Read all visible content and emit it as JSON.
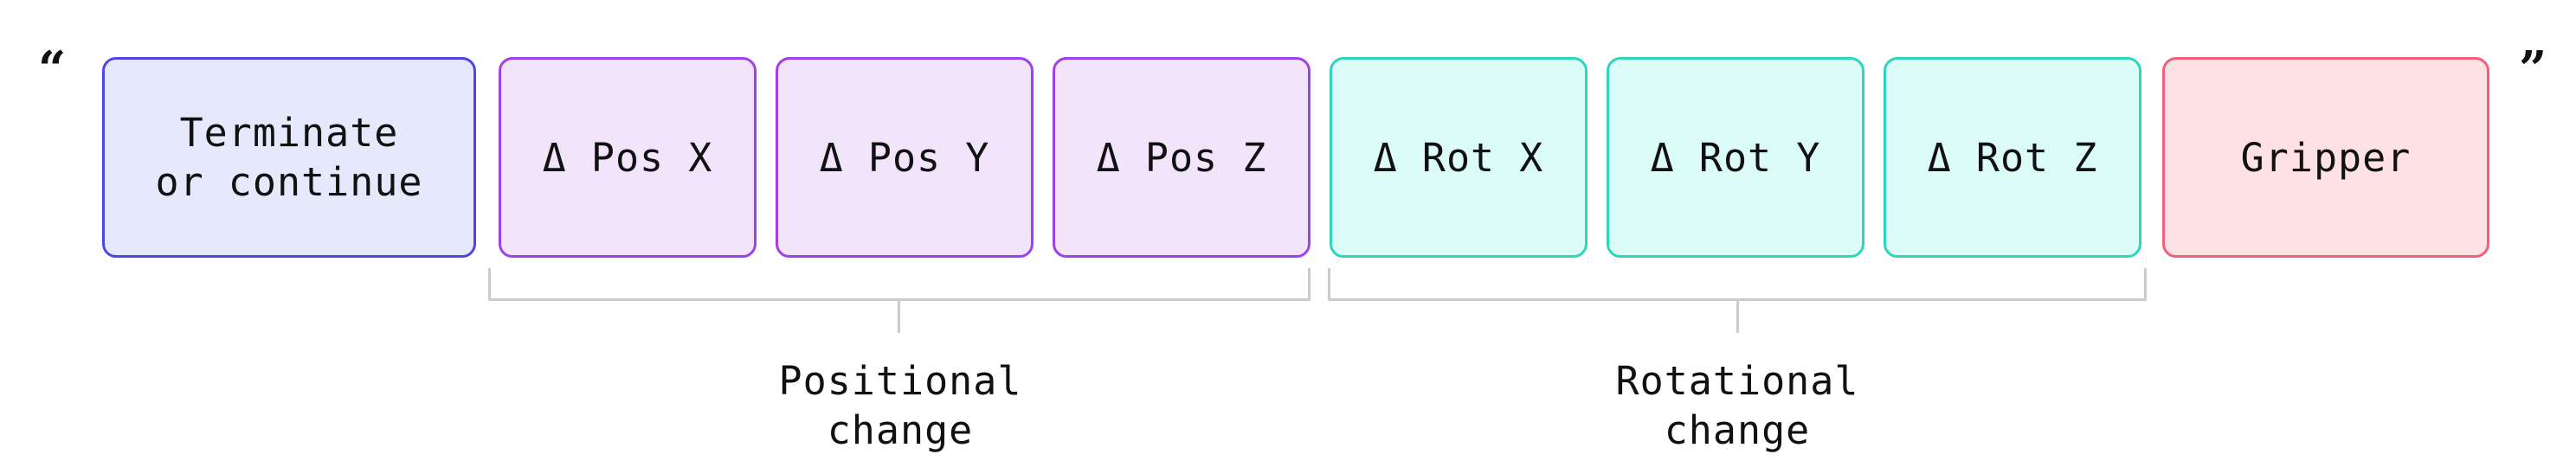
{
  "quotes": {
    "open": "“",
    "close": "”"
  },
  "tokens": {
    "terminate": "Terminate\nor continue",
    "pos_x": "Δ Pos X",
    "pos_y": "Δ Pos Y",
    "pos_z": "Δ Pos Z",
    "rot_x": "Δ Rot X",
    "rot_y": "Δ Rot Y",
    "rot_z": "Δ Rot Z",
    "gripper": "Gripper"
  },
  "groups": {
    "positional": "Positional\nchange",
    "rotational": "Rotational\nchange"
  },
  "colors": {
    "terminate_fill": "#e6e9fc",
    "terminate_border": "#5046e4",
    "position_fill": "#f1e4fb",
    "position_border": "#a040e8",
    "rotation_fill": "#dcfdf7",
    "rotation_border": "#2ed6bd",
    "gripper_fill": "#fee1e5",
    "gripper_border": "#f0607a",
    "bracket": "#cccccc"
  }
}
